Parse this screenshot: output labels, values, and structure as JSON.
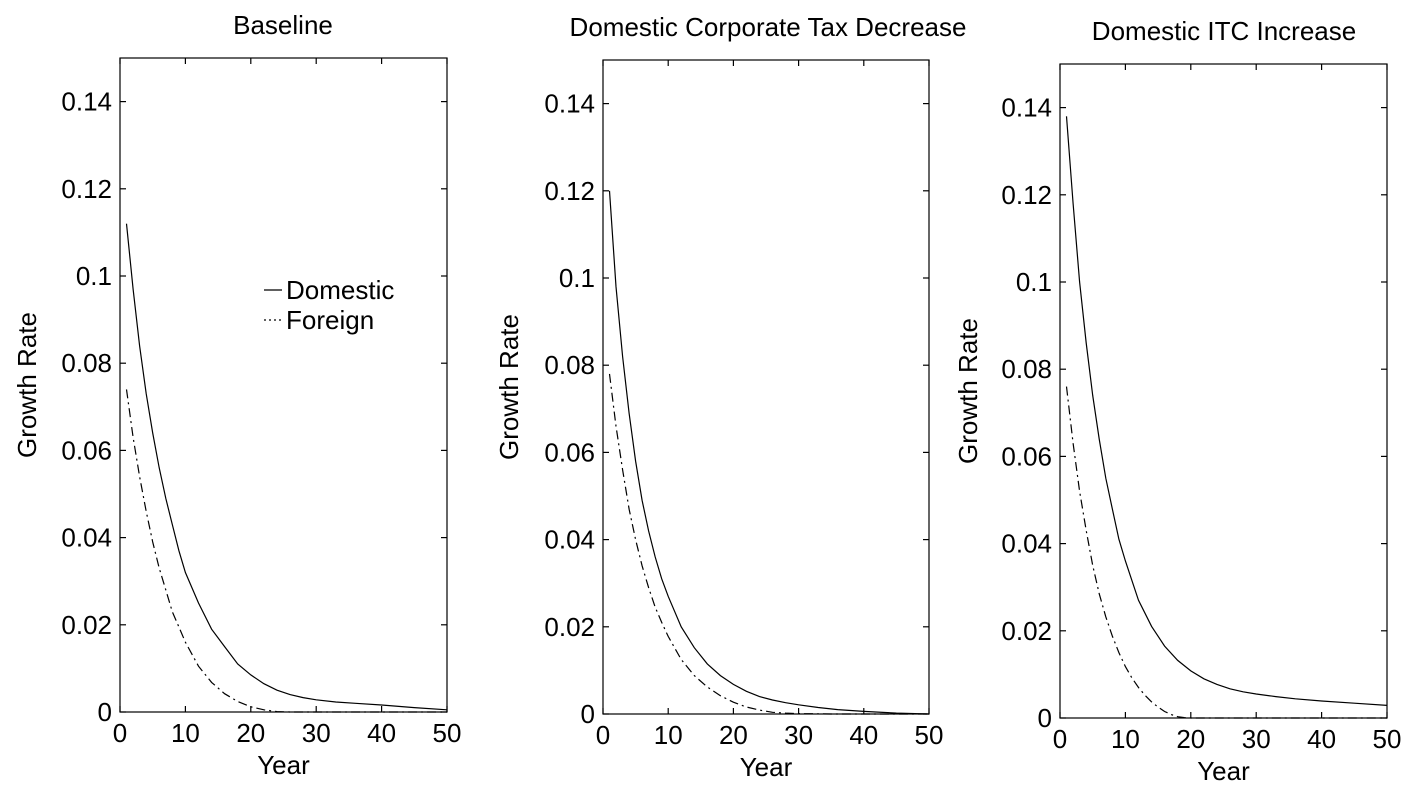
{
  "chart_data": [
    {
      "type": "line",
      "title": "Baseline",
      "xlabel": "Year",
      "ylabel": "Growth Rate",
      "xlim": [
        0,
        50
      ],
      "ylim": [
        0,
        0.15
      ],
      "xticks": [
        "0",
        "10",
        "20",
        "30",
        "40",
        "50"
      ],
      "yticks": [
        "0",
        "0.02",
        "0.04",
        "0.06",
        "0.08",
        "0.1",
        "0.12",
        "0.14"
      ],
      "legend": {
        "position": "upper-right",
        "entries": [
          "Domestic",
          "Foreign"
        ]
      },
      "series": [
        {
          "name": "Domestic",
          "style": "solid",
          "x": [
            1,
            2,
            3,
            4,
            5,
            6,
            7,
            8,
            9,
            10,
            12,
            14,
            16,
            18,
            20,
            22,
            24,
            26,
            28,
            30,
            33,
            36,
            40,
            45,
            50
          ],
          "y": [
            0.112,
            0.097,
            0.084,
            0.073,
            0.064,
            0.056,
            0.049,
            0.043,
            0.037,
            0.032,
            0.025,
            0.019,
            0.015,
            0.011,
            0.0085,
            0.0065,
            0.005,
            0.004,
            0.0033,
            0.0028,
            0.0023,
            0.002,
            0.0016,
            0.001,
            0.0005
          ]
        },
        {
          "name": "Foreign",
          "style": "dashdot",
          "x": [
            1,
            2,
            3,
            4,
            5,
            6,
            7,
            8,
            9,
            10,
            12,
            14,
            16,
            18,
            20,
            22,
            24,
            26,
            30,
            40,
            50
          ],
          "y": [
            0.074,
            0.063,
            0.054,
            0.046,
            0.039,
            0.033,
            0.028,
            0.023,
            0.0195,
            0.016,
            0.0105,
            0.0068,
            0.0042,
            0.0024,
            0.0012,
            0.0005,
            0.0001,
            0.0,
            0.0,
            0.0,
            0.0
          ]
        }
      ]
    },
    {
      "type": "line",
      "title": "Domestic Corporate Tax Decrease",
      "xlabel": "Year",
      "ylabel": "Growth Rate",
      "xlim": [
        0,
        50
      ],
      "ylim": [
        0,
        0.15
      ],
      "xticks": [
        "0",
        "10",
        "20",
        "30",
        "40",
        "50"
      ],
      "yticks": [
        "0",
        "0.02",
        "0.04",
        "0.06",
        "0.08",
        "0.1",
        "0.12",
        "0.14"
      ],
      "series": [
        {
          "name": "Domestic",
          "style": "solid",
          "x": [
            1,
            2,
            3,
            4,
            5,
            6,
            7,
            8,
            9,
            10,
            12,
            14,
            16,
            18,
            20,
            22,
            24,
            26,
            28,
            30,
            33,
            36,
            40,
            45,
            50
          ],
          "y": [
            0.12,
            0.098,
            0.082,
            0.069,
            0.058,
            0.049,
            0.042,
            0.036,
            0.031,
            0.027,
            0.02,
            0.0152,
            0.0115,
            0.0088,
            0.0068,
            0.0052,
            0.004,
            0.0032,
            0.0026,
            0.0021,
            0.0015,
            0.001,
            0.0006,
            0.0002,
            0.0
          ]
        },
        {
          "name": "Foreign",
          "style": "dashdot",
          "x": [
            1,
            2,
            3,
            4,
            5,
            6,
            7,
            8,
            9,
            10,
            12,
            14,
            16,
            18,
            20,
            22,
            24,
            26,
            28,
            30,
            35,
            40,
            50
          ],
          "y": [
            0.078,
            0.066,
            0.056,
            0.047,
            0.04,
            0.034,
            0.029,
            0.0245,
            0.021,
            0.0178,
            0.0125,
            0.0088,
            0.0062,
            0.0042,
            0.0027,
            0.0016,
            0.0009,
            0.0004,
            0.0002,
            0.0001,
            0.0,
            0.0,
            0.0
          ]
        }
      ]
    },
    {
      "type": "line",
      "title": "Domestic ITC Increase",
      "xlabel": "Year",
      "ylabel": "Growth Rate",
      "xlim": [
        0,
        50
      ],
      "ylim": [
        0,
        0.15
      ],
      "xticks": [
        "0",
        "10",
        "20",
        "30",
        "40",
        "50"
      ],
      "yticks": [
        "0",
        "0.02",
        "0.04",
        "0.06",
        "0.08",
        "0.1",
        "0.12",
        "0.14"
      ],
      "series": [
        {
          "name": "Domestic",
          "style": "solid",
          "x": [
            1,
            2,
            3,
            4,
            5,
            6,
            7,
            8,
            9,
            10,
            12,
            14,
            16,
            18,
            20,
            22,
            24,
            26,
            28,
            30,
            33,
            36,
            40,
            45,
            50
          ],
          "y": [
            0.138,
            0.118,
            0.1,
            0.086,
            0.074,
            0.064,
            0.055,
            0.048,
            0.041,
            0.036,
            0.027,
            0.021,
            0.0165,
            0.0132,
            0.0108,
            0.009,
            0.0077,
            0.0067,
            0.006,
            0.0055,
            0.0049,
            0.0044,
            0.0039,
            0.0034,
            0.0029
          ]
        },
        {
          "name": "Foreign",
          "style": "dashdot",
          "x": [
            1,
            2,
            3,
            4,
            5,
            6,
            7,
            8,
            9,
            10,
            11,
            12,
            13,
            14,
            15,
            16,
            17,
            18,
            19,
            20,
            25,
            30,
            40,
            50
          ],
          "y": [
            0.076,
            0.063,
            0.052,
            0.043,
            0.035,
            0.0285,
            0.0232,
            0.0188,
            0.015,
            0.0118,
            0.0092,
            0.007,
            0.0052,
            0.0037,
            0.0025,
            0.0015,
            0.0008,
            0.0003,
            0.0001,
            0.0,
            0.0,
            0.0,
            0.0,
            0.0
          ]
        }
      ]
    }
  ]
}
